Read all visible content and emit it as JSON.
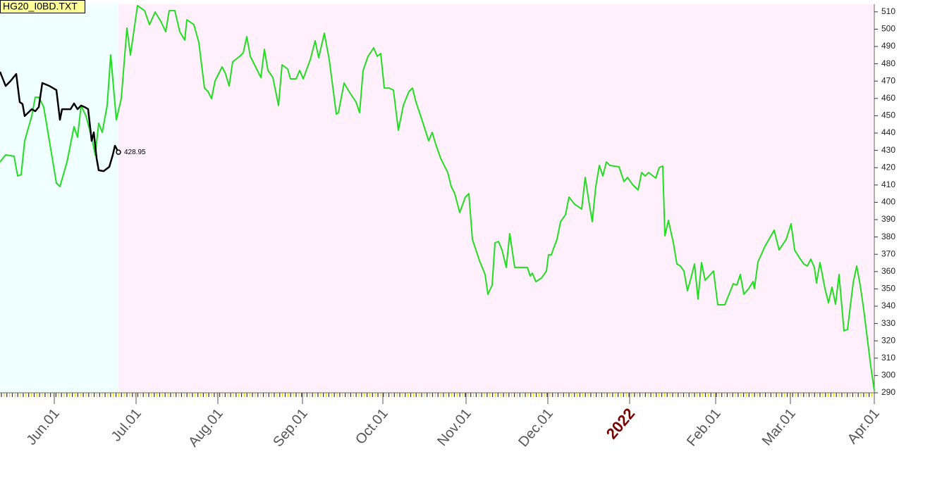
{
  "chart_data": {
    "type": "line",
    "title": "HG20_I0BD.TXT",
    "xlim": [
      0,
      1240
    ],
    "ylim": [
      290,
      514.4
    ],
    "yticks": [
      290,
      300,
      310,
      320,
      330,
      340,
      350,
      360,
      370,
      380,
      390,
      400,
      410,
      420,
      430,
      440,
      450,
      460,
      470,
      480,
      490,
      500,
      510
    ],
    "xticks": [
      {
        "value": 77,
        "label": "Jun.01"
      },
      {
        "value": 193,
        "label": "Jul.01"
      },
      {
        "value": 309,
        "label": "Aug.01"
      },
      {
        "value": 429,
        "label": "Sep.01"
      },
      {
        "value": 543,
        "label": "Oct.01"
      },
      {
        "value": 661,
        "label": "Nov.01"
      },
      {
        "value": 777,
        "label": "Dec.01"
      },
      {
        "value": 893,
        "label": "2022"
      },
      {
        "value": 1015,
        "label": "Feb.01"
      },
      {
        "value": 1121,
        "label": "Mar.01"
      },
      {
        "value": 1240,
        "label": "Apr.01"
      }
    ],
    "series": [
      {
        "color": "#22dd22",
        "x": [
          0,
          8,
          20,
          25,
          30,
          35,
          45,
          50,
          55,
          62,
          70,
          80,
          85,
          95,
          105,
          110,
          115,
          122,
          130,
          135,
          140,
          145,
          152,
          157,
          165,
          172,
          180,
          185,
          195,
          205,
          212,
          220,
          228,
          235,
          240,
          248,
          255,
          262,
          265,
          275,
          282,
          290,
          295,
          300,
          305,
          315,
          320,
          325,
          330,
          340,
          345,
          350,
          355,
          365,
          370,
          375,
          380,
          387,
          395,
          400,
          408,
          412,
          420,
          425,
          430,
          440,
          447,
          452,
          460,
          467,
          477,
          480,
          488,
          495,
          505,
          510,
          515,
          522,
          530,
          535,
          540,
          545,
          552,
          558,
          565,
          572,
          580,
          585,
          590,
          600,
          608,
          613,
          618,
          625,
          635,
          640,
          645,
          652,
          660,
          665,
          670,
          680,
          688,
          692,
          698,
          702,
          707,
          712,
          718,
          723,
          730,
          748,
          752,
          755,
          760,
          768,
          775,
          778,
          782,
          785,
          790,
          795,
          802,
          807,
          815,
          825,
          830,
          835,
          840,
          845,
          850,
          855,
          860,
          865,
          878,
          885,
          890,
          897,
          905,
          910,
          915,
          920,
          930,
          935,
          940,
          943,
          948,
          955,
          960,
          965,
          970,
          975,
          980,
          985,
          990,
          995,
          1000,
          1012,
          1018,
          1028,
          1040,
          1045,
          1050,
          1055,
          1062,
          1068,
          1070,
          1075,
          1085,
          1098,
          1105,
          1115,
          1122,
          1127,
          1133,
          1140,
          1145,
          1150,
          1155,
          1158,
          1163,
          1170,
          1175,
          1180,
          1185,
          1190,
          1197,
          1202,
          1210,
          1215,
          1220,
          1225,
          1230,
          1235,
          1240
        ],
        "values": [
          423.3,
          427.4,
          426.6,
          415.2,
          416.0,
          435.5,
          449.8,
          460.7,
          460.7,
          455.0,
          435.5,
          411.1,
          409.1,
          423.3,
          443.7,
          437.6,
          455.9,
          449.8,
          437.6,
          427.4,
          445.7,
          440.4,
          455.9,
          485.1,
          447.7,
          459.9,
          500.6,
          485.1,
          513.6,
          510.7,
          502.6,
          509.9,
          504.6,
          498.5,
          510.7,
          510.7,
          498.5,
          493.7,
          505.4,
          502.6,
          492.4,
          466.0,
          464.0,
          459.9,
          470.1,
          478.2,
          474.1,
          467.2,
          481.1,
          484.3,
          486.3,
          495.7,
          484.3,
          476.2,
          472.1,
          488.4,
          476.2,
          472.1,
          455.9,
          479.4,
          477.0,
          471.3,
          471.3,
          476.2,
          471.3,
          482.3,
          493.3,
          483.5,
          497.7,
          482.3,
          451.0,
          451.8,
          468.9,
          464.0,
          457.9,
          451.8,
          476.2,
          484.3,
          489.2,
          484.3,
          485.9,
          466.0,
          466.0,
          464.8,
          441.6,
          455.9,
          464.0,
          466.0,
          457.9,
          445.7,
          435.5,
          440.4,
          433.5,
          425.4,
          417.2,
          409.1,
          405.0,
          394.1,
          403.0,
          405.0,
          378.6,
          366.4,
          358.3,
          346.9,
          352.2,
          376.6,
          377.4,
          372.5,
          362.4,
          381.9,
          362.4,
          362.4,
          357.5,
          359.1,
          354.2,
          356.3,
          360.3,
          369.7,
          369.7,
          373.3,
          378.6,
          388.8,
          392.8,
          403.0,
          398.9,
          396.1,
          414.4,
          401.0,
          388.8,
          409.1,
          421.3,
          415.2,
          423.3,
          421.3,
          420.5,
          412.0,
          414.4,
          410.3,
          407.1,
          417.2,
          415.2,
          417.2,
          414.0,
          420.1,
          420.9,
          380.7,
          389.6,
          376.6,
          364.4,
          363.2,
          360.3,
          348.9,
          356.3,
          364.4,
          344.1,
          365.2,
          355.0,
          360.3,
          340.8,
          340.8,
          353.0,
          352.2,
          358.3,
          346.9,
          350.2,
          354.2,
          350.2,
          365.6,
          374.6,
          383.9,
          372.5,
          378.6,
          387.6,
          372.5,
          368.5,
          364.4,
          363.2,
          367.2,
          362.4,
          353.4,
          365.2,
          350.2,
          342.0,
          351.0,
          341.2,
          358.3,
          325.8,
          326.6,
          353.4,
          363.2,
          352.2,
          338.0,
          321.7,
          305.4,
          291.2
        ]
      },
      {
        "color": "#000000",
        "x": [
          0,
          8,
          15,
          23,
          28,
          32,
          35,
          45,
          50,
          55,
          60,
          70,
          80,
          85,
          88,
          100,
          105,
          110,
          115,
          120,
          125,
          130,
          133,
          137,
          140,
          147,
          155,
          160,
          163,
          168
        ],
        "values": [
          475.4,
          467.2,
          470.1,
          474.1,
          457.9,
          456.7,
          449.8,
          453.8,
          452.6,
          455.0,
          468.9,
          467.2,
          464.8,
          447.7,
          453.8,
          453.8,
          457.1,
          453.8,
          455.9,
          455.0,
          453.8,
          435.5,
          440.4,
          425.4,
          418.5,
          418.0,
          420.5,
          427.4,
          432.7,
          428.95
        ]
      }
    ]
  }
}
